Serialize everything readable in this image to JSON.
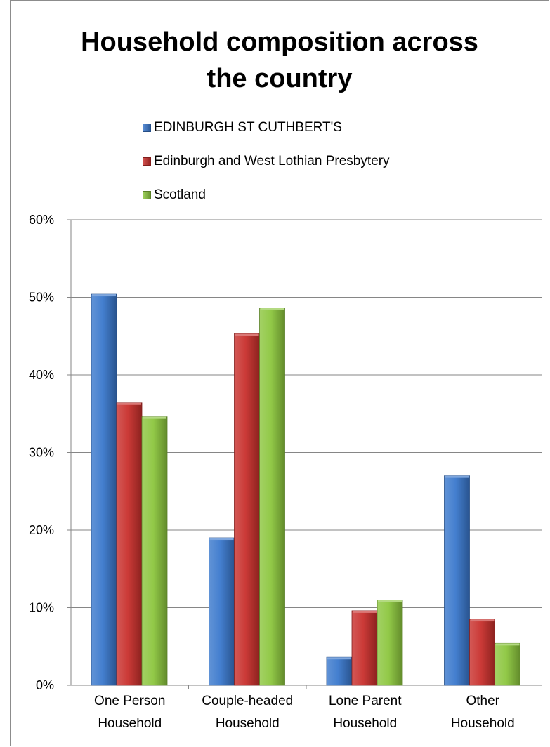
{
  "chart_data": {
    "type": "bar",
    "title_lines": [
      "Household composition across",
      "the country"
    ],
    "categories": [
      [
        "One Person",
        "Household"
      ],
      [
        "Couple-headed",
        "Household"
      ],
      [
        "Lone Parent",
        "Household"
      ],
      [
        "Other",
        "Household"
      ]
    ],
    "series": [
      {
        "name": "EDINBURGH ST CUTHBERT'S",
        "color": "#3a78cc",
        "values": [
          0.504,
          0.19,
          0.036,
          0.27
        ]
      },
      {
        "name": "Edinburgh and West Lothian Presbytery",
        "color": "#c8302c",
        "values": [
          0.364,
          0.453,
          0.096,
          0.085
        ]
      },
      {
        "name": "Scotland",
        "color": "#8cc63e",
        "values": [
          0.346,
          0.486,
          0.11,
          0.054
        ]
      }
    ],
    "ylim": [
      0,
      0.6
    ],
    "yticks": [
      0,
      0.1,
      0.2,
      0.3,
      0.4,
      0.5,
      0.6
    ],
    "ytick_labels": [
      "0%",
      "10%",
      "20%",
      "30%",
      "40%",
      "50%",
      "60%"
    ],
    "grid": true,
    "legend_position": "top"
  }
}
